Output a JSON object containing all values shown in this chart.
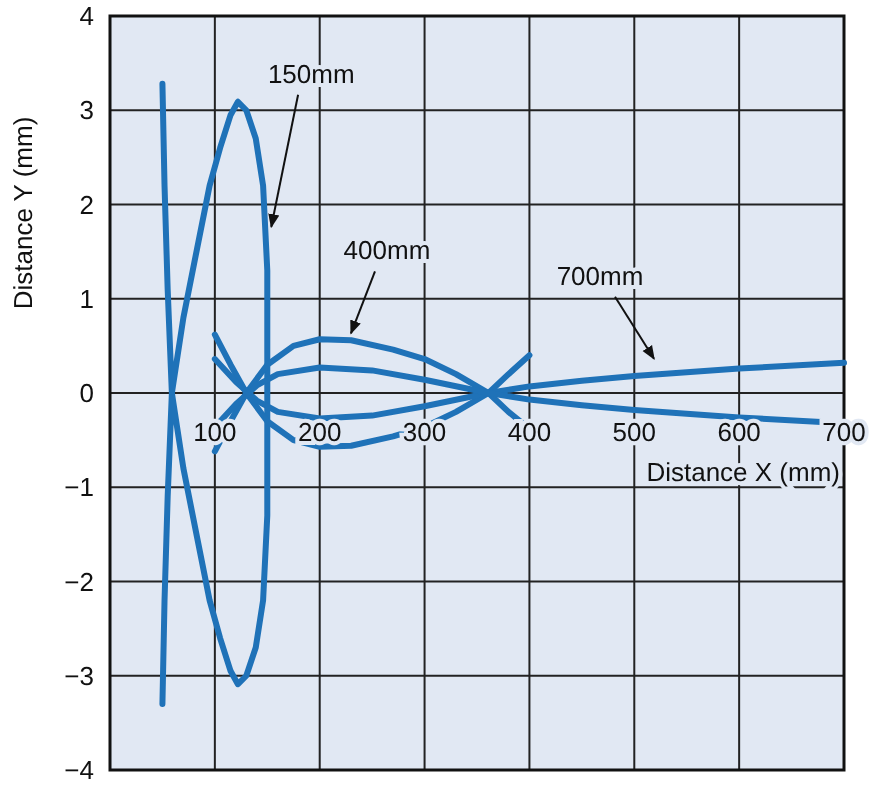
{
  "chart_data": {
    "type": "line",
    "xlabel": "Distance X (mm)",
    "ylabel": "Distance Y (mm)",
    "xlim": [
      0,
      700
    ],
    "ylim": [
      -4,
      4
    ],
    "xticks": [
      100,
      200,
      300,
      400,
      500,
      600,
      700
    ],
    "yticks": [
      -4,
      -3,
      -2,
      -1,
      0,
      1,
      2,
      3,
      4
    ],
    "grid": true,
    "line_style": "solid",
    "marker": "none",
    "series": [
      {
        "color": "#1f72b8",
        "x": [
          50,
          52,
          55,
          59,
          70,
          83,
          95,
          105,
          115,
          122,
          130,
          139,
          146,
          150,
          150,
          146,
          139,
          130,
          122,
          115,
          105,
          95,
          83,
          70,
          59,
          55,
          52,
          50
        ],
        "values": [
          3.28,
          2.2,
          1.1,
          0,
          -0.8,
          -1.53,
          -2.2,
          -2.6,
          -2.95,
          -3.09,
          -3.0,
          -2.7,
          -2.2,
          -1.3,
          1.3,
          2.2,
          2.7,
          3.0,
          3.09,
          2.95,
          2.6,
          2.2,
          1.53,
          0.8,
          0,
          -1.1,
          -2.2,
          -3.3
        ]
      },
      {
        "color": "#1f72b8",
        "x": [
          100,
          115,
          130,
          150,
          175,
          200,
          230,
          270,
          300,
          330,
          361,
          380,
          400
        ],
        "values": [
          0.62,
          0.3,
          0,
          -0.3,
          -0.5,
          -0.57,
          -0.56,
          -0.46,
          -0.36,
          -0.2,
          0,
          0.2,
          0.4
        ]
      },
      {
        "color": "#1f72b8",
        "x": [
          100,
          115,
          130,
          150,
          175,
          200,
          230,
          270,
          300,
          330,
          361,
          380,
          400
        ],
        "values": [
          -0.62,
          -0.3,
          0,
          0.3,
          0.5,
          0.57,
          0.56,
          0.46,
          0.36,
          0.2,
          0,
          -0.2,
          -0.38
        ]
      },
      {
        "color": "#1f72b8",
        "x": [
          100,
          120,
          140,
          160,
          200,
          250,
          300,
          361,
          400,
          450,
          500,
          600,
          700
        ],
        "values": [
          0.36,
          0.12,
          -0.08,
          -0.2,
          -0.27,
          -0.24,
          -0.14,
          0,
          0.07,
          0.13,
          0.18,
          0.26,
          0.32
        ]
      },
      {
        "color": "#1f72b8",
        "x": [
          100,
          120,
          140,
          160,
          200,
          250,
          300,
          361,
          400,
          450,
          500,
          600,
          700
        ],
        "values": [
          -0.36,
          -0.12,
          0.08,
          0.2,
          0.27,
          0.24,
          0.14,
          0,
          -0.07,
          -0.13,
          -0.18,
          -0.26,
          -0.32
        ]
      }
    ],
    "annotations": [
      {
        "text": "150mm",
        "x": 150,
        "y": 1.7
      },
      {
        "text": "400mm",
        "x": 226,
        "y": 0.57
      },
      {
        "text": "700mm",
        "x": 515,
        "y": 0.3
      }
    ]
  }
}
